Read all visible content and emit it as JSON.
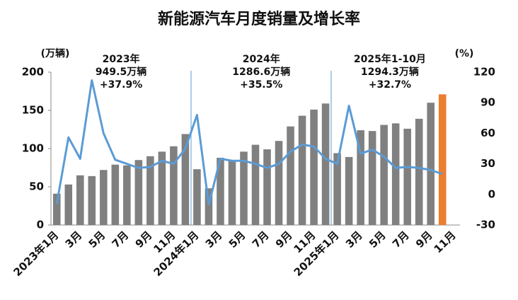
{
  "chart_data": {
    "type": "bar-line",
    "title": "新能源汽车月度销量及增长率",
    "y_label": "(万辆)",
    "y2_label": "(%)",
    "categories": [
      "2023年1月",
      null,
      "3月",
      null,
      "5月",
      null,
      "7月",
      null,
      "9月",
      null,
      "11月",
      null,
      "2024年1月",
      null,
      "3月",
      null,
      "5月",
      null,
      "7月",
      null,
      "9月",
      null,
      "11月",
      null,
      "2025年1月",
      null,
      "3月",
      null,
      "5月",
      null,
      "7月",
      null,
      "9月",
      null,
      "11月"
    ],
    "series": [
      {
        "type": "bar",
        "colors": [
          "#808080",
          "#808080",
          "#808080",
          "#808080",
          "#808080",
          "#808080",
          "#808080",
          "#808080",
          "#808080",
          "#808080",
          "#808080",
          "#808080",
          "#808080",
          "#808080",
          "#808080",
          "#808080",
          "#808080",
          "#808080",
          "#808080",
          "#808080",
          "#808080",
          "#808080",
          "#808080",
          "#808080",
          "#808080",
          "#808080",
          "#808080",
          "#808080",
          "#808080",
          "#808080",
          "#808080",
          "#808080",
          "#808080",
          "#ed7d31",
          null
        ],
        "values": [
          41,
          53,
          65,
          64,
          72,
          79,
          78,
          85,
          90,
          96,
          103,
          119,
          73,
          48,
          88,
          85,
          96,
          105,
          99,
          110,
          129,
          143,
          151,
          159,
          94,
          89,
          124,
          123,
          131,
          133,
          126,
          139,
          160,
          171,
          null
        ]
      },
      {
        "type": "line",
        "axis": "y2",
        "color": "#5b9bd5",
        "values": [
          -9,
          56,
          35,
          112,
          60,
          34,
          30,
          26,
          27,
          33,
          30,
          45,
          78,
          -10,
          35,
          33,
          33,
          30,
          26,
          30,
          42,
          49,
          47,
          35,
          30,
          87,
          40,
          44,
          37,
          26,
          27,
          26,
          24,
          20,
          null
        ]
      }
    ],
    "ylim": [
      0,
      200
    ],
    "yticks": [
      0,
      50,
      100,
      150,
      200
    ],
    "y2lim": [
      -30,
      120
    ],
    "y2ticks": [
      -30,
      0,
      30,
      60,
      90,
      120
    ],
    "annotations": [
      [
        "2023年",
        "949.5万辆",
        "+37.9%"
      ],
      [
        "2024年",
        "1286.6万辆",
        "+35.5%"
      ],
      [
        "2025年1-10月",
        "1294.3万辆",
        "+32.7%"
      ]
    ]
  }
}
